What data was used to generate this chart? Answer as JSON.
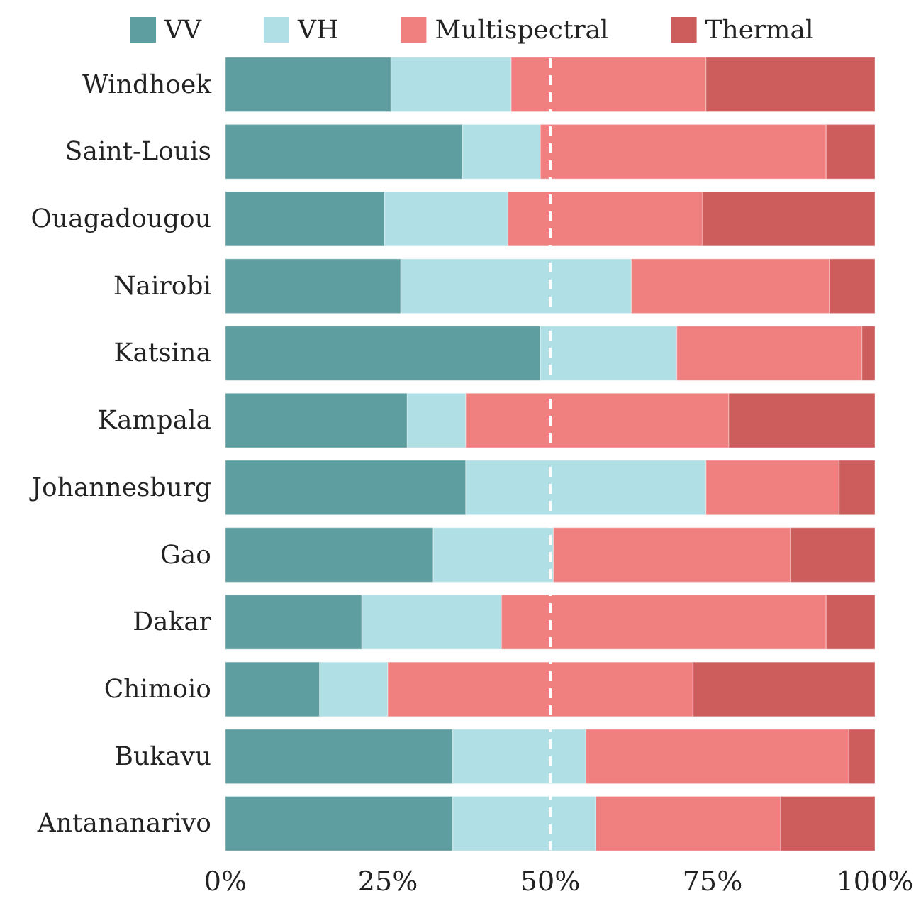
{
  "chart_data": {
    "type": "bar",
    "orientation": "horizontal",
    "stacked": true,
    "categories": [
      "Windhoek",
      "Saint-Louis",
      "Ouagadougou",
      "Nairobi",
      "Katsina",
      "Kampala",
      "Johannesburg",
      "Gao",
      "Dakar",
      "Chimoio",
      "Bukavu",
      "Antananarivo"
    ],
    "series": [
      {
        "name": "VV",
        "color": "#5f9ea0",
        "values": [
          25.5,
          36.5,
          24.5,
          27,
          48.5,
          28,
          37,
          32,
          21,
          14.5,
          35,
          35
        ]
      },
      {
        "name": "VH",
        "color": "#b0e0e6",
        "values": [
          18.5,
          12,
          19,
          35.5,
          21,
          9,
          37,
          18.5,
          21.5,
          10.5,
          20.5,
          22
        ]
      },
      {
        "name": "Multispectral",
        "color": "#f08080",
        "values": [
          30,
          44,
          30,
          30.5,
          28.5,
          40.5,
          20.5,
          36.5,
          50,
          47,
          40.5,
          28.5
        ]
      },
      {
        "name": "Thermal",
        "color": "#cd5c5c",
        "values": [
          26,
          7.5,
          26.5,
          7,
          2,
          22.5,
          5.5,
          13,
          7.5,
          28,
          4,
          14.5
        ]
      }
    ],
    "xlim": [
      0,
      100
    ],
    "xticks": [
      {
        "value": 0,
        "label": "0%"
      },
      {
        "value": 25,
        "label": "25%"
      },
      {
        "value": 50,
        "label": "50%"
      },
      {
        "value": 75,
        "label": "75%"
      },
      {
        "value": 100,
        "label": "100%"
      }
    ],
    "ref_lines": [
      {
        "axis": "x",
        "value": 50,
        "color": "#ffffff",
        "line_style": "dashed"
      }
    ],
    "legend": "top",
    "grid": false
  }
}
